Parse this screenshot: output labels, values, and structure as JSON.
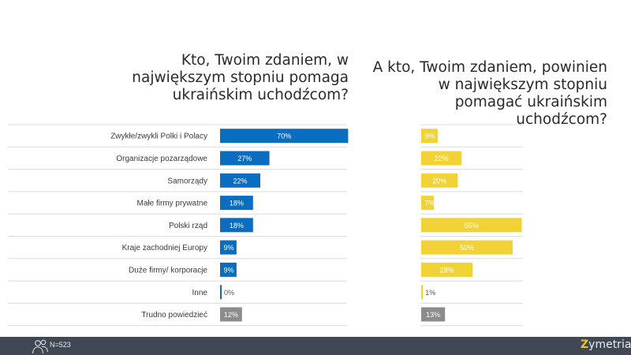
{
  "chart_data": [
    {
      "type": "bar",
      "orientation": "horizontal",
      "title": "Kto, Twoim zdaniem, w największym stopniu pomaga ukraińskim uchodźcom?",
      "categories": [
        "Zwykłe/zwykli Polki i Polacy",
        "Organizacje pozarządowe",
        "Samorządy",
        "Małe firmy prywatne",
        "Polski rząd",
        "Kraje zachodniej Europy",
        "Duże firmy/ korporacje",
        "Inne",
        "Trudno powiedzieć"
      ],
      "values": [
        70,
        27,
        22,
        18,
        18,
        9,
        9,
        0,
        12
      ],
      "labels": [
        "70%",
        "27%",
        "22%",
        "18%",
        "18%",
        "9%",
        "9%",
        "0%",
        "12%"
      ],
      "colors": [
        "#0a6dbf",
        "#0a6dbf",
        "#0a6dbf",
        "#0a6dbf",
        "#0a6dbf",
        "#0a6dbf",
        "#0a6dbf",
        "#0a6dbf",
        "#8c8c8c"
      ],
      "xlim": [
        0,
        100
      ]
    },
    {
      "type": "bar",
      "orientation": "horizontal",
      "title": "A kto, Twoim zdaniem, powinien w największym stopniu pomagać ukraińskim uchodźcom?",
      "categories": [
        "Zwykłe/zwykli Polki i Polacy",
        "Organizacje pozarządowe",
        "Samorządy",
        "Małe firmy prywatne",
        "Polski rząd",
        "Kraje zachodniej Europy",
        "Duże firmy/ korporacje",
        "Inne",
        "Trudno powiedzieć"
      ],
      "values": [
        9,
        22,
        20,
        7,
        55,
        50,
        28,
        1,
        13
      ],
      "labels": [
        "9%",
        "22%",
        "20%",
        "7%",
        "55%",
        "50%",
        "28%",
        "1%",
        "13%"
      ],
      "colors": [
        "#f2d337",
        "#f2d337",
        "#f2d337",
        "#f2d337",
        "#f2d337",
        "#f2d337",
        "#f2d337",
        "#f2d337",
        "#8c8c8c"
      ],
      "xlim": [
        0,
        100
      ]
    }
  ],
  "footer": {
    "sample_size": "N=523",
    "logo_text": "ymetria",
    "logo_mark": "Z"
  }
}
